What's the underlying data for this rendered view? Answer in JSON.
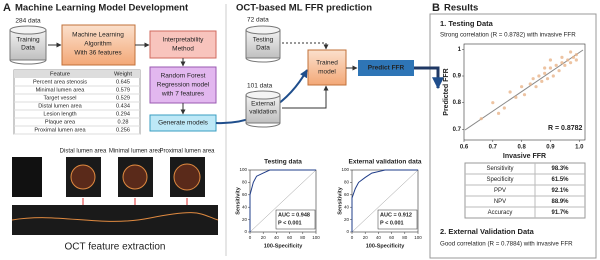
{
  "panel_a": {
    "label": "A",
    "title": "Machine Learning Model Development",
    "training": {
      "count": "284 data",
      "label": [
        "Training",
        "Data"
      ]
    },
    "ml_box": [
      "Machine Learning",
      "Algorithm",
      "With 36 features"
    ],
    "interp_box": [
      "Interpretability",
      "Method"
    ],
    "rf_box": [
      "Random Forest",
      "Regression model",
      "with 7 features"
    ],
    "generate_box": "Generate models",
    "feature_table": {
      "header": [
        "Feature",
        "Weight"
      ],
      "rows": [
        [
          "Percent area stenosis",
          0.645
        ],
        [
          "Minimal lumen area",
          0.579
        ],
        [
          "Target vessel",
          0.529
        ],
        [
          "Distal lumen area",
          0.434
        ],
        [
          "Lesion length",
          0.294
        ],
        [
          "Plaque area",
          0.28
        ],
        [
          "Proximal lumen area",
          0.256
        ]
      ]
    },
    "oct_labels": [
      "Distal lumen area",
      "Minimal lumen area",
      "Proximal lumen area"
    ],
    "caption": "OCT feature extraction"
  },
  "panel_middle": {
    "title": "OCT-based ML FFR prediction",
    "testing": {
      "count": "72 data",
      "label": [
        "Testing",
        "Data"
      ]
    },
    "external": {
      "count": "101 data",
      "label": [
        "External",
        "validation"
      ]
    },
    "model": [
      "Trained",
      "model"
    ],
    "predict": "Predict FFR",
    "roc_xlabel": "100-Specificity",
    "roc_ylabel": "Sensitivity",
    "roc_ticks": [
      0,
      20,
      40,
      60,
      80,
      100
    ],
    "roc": [
      {
        "title": "Testing data",
        "auc": "AUC = 0.948",
        "p": "P < 0.001",
        "x": [
          0,
          0,
          5,
          10,
          20,
          30,
          100
        ],
        "y": [
          0,
          60,
          80,
          90,
          95,
          100,
          100
        ]
      },
      {
        "title": "External validation data",
        "auc": "AUC = 0.912",
        "p": "P < 0.001",
        "x": [
          0,
          0,
          5,
          10,
          20,
          30,
          50,
          100
        ],
        "y": [
          0,
          55,
          70,
          80,
          88,
          95,
          100,
          100
        ]
      }
    ]
  },
  "panel_b": {
    "label": "B",
    "title": "Results",
    "testing_title": "1. Testing Data",
    "testing_note": "Strong correlation (R = 0.8782) with invasive FFR",
    "scatter": {
      "xlabel": "Invasive FFR",
      "ylabel": "Predicted FFR",
      "r_label": "R = 0.8782",
      "xlim": [
        0.6,
        1.02
      ],
      "ylim": [
        0.66,
        1.02
      ],
      "xticks": [
        0.6,
        0.7,
        0.8,
        0.9,
        {
          "value": 1,
          "label": "1.0"
        }
      ],
      "yticks": [
        0.7,
        0.8,
        0.9,
        1
      ],
      "x": [
        0.66,
        0.7,
        0.72,
        0.74,
        0.76,
        0.78,
        0.8,
        0.81,
        0.83,
        0.84,
        0.85,
        0.86,
        0.87,
        0.88,
        0.89,
        0.9,
        0.91,
        0.92,
        0.93,
        0.94,
        0.95,
        0.96,
        0.97,
        0.98,
        0.99,
        0.9,
        0.94,
        0.97,
        0.99,
        0.88
      ],
      "y": [
        0.74,
        0.8,
        0.76,
        0.78,
        0.84,
        0.82,
        0.86,
        0.83,
        0.87,
        0.89,
        0.86,
        0.9,
        0.88,
        0.91,
        0.89,
        0.93,
        0.9,
        0.94,
        0.92,
        0.95,
        0.94,
        0.96,
        0.95,
        0.97,
        0.98,
        0.96,
        0.97,
        0.99,
        0.96,
        0.93
      ]
    },
    "metrics": [
      [
        "Sensitivity",
        "98.3%"
      ],
      [
        "Specificity",
        "61.5%"
      ],
      [
        "PPV",
        "92.1%"
      ],
      [
        "NPV",
        "88.9%"
      ],
      [
        "Accuracy",
        "91.7%"
      ]
    ],
    "external_title": "2. External Validation Data",
    "external_note": "Good correlation (R = 0.7884) with invasive FFR"
  }
}
